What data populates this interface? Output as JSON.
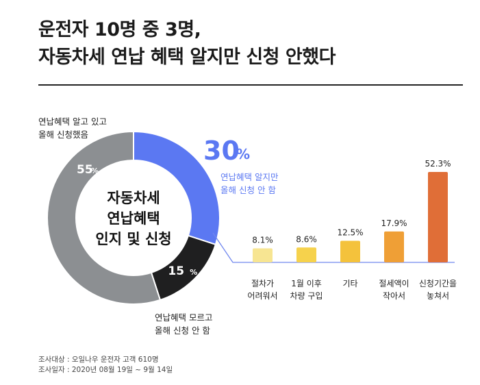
{
  "title": {
    "line1": "운전자 10명 중 3명,",
    "line2": "자동차세 연납 혜택 알지만 신청 안했다"
  },
  "colors": {
    "blue": "#5b78f2",
    "gray": "#8c8f92",
    "black": "#1f1f20",
    "line": "#6f86ee"
  },
  "chart_data": [
    {
      "type": "pie",
      "center_label": [
        "자동차세",
        "연납혜택",
        "인지 및 신청"
      ],
      "slices": [
        {
          "pct": 30,
          "display": "30",
          "unit": "%",
          "color": "#5b78f2",
          "label": [
            "연납혜택 알지만",
            "올해 신청 안 함"
          ]
        },
        {
          "pct": 15,
          "display": "15",
          "unit": "%",
          "color": "#1f1f20",
          "label": [
            "연납혜택 모르고",
            "올해 신청 안 함"
          ]
        },
        {
          "pct": 55,
          "display": "55",
          "unit": "%",
          "color": "#8c8f92",
          "label": [
            "연납혜택 알고 있고",
            "올해 신청했음"
          ]
        }
      ]
    },
    {
      "type": "bar",
      "categories": [
        [
          "절차가",
          "어려워서"
        ],
        [
          "1월 이후",
          "차량 구입"
        ],
        [
          "기타"
        ],
        [
          "절세액이",
          "작아서"
        ],
        [
          "신청기간을",
          "놓쳐서"
        ]
      ],
      "values": [
        8.1,
        8.6,
        12.5,
        17.9,
        52.3
      ],
      "value_labels": [
        "8.1%",
        "8.6%",
        "12.5%",
        "17.9%",
        "52.3%"
      ],
      "colors": [
        "#f7e592",
        "#f6d24c",
        "#f4c23c",
        "#ef9f36",
        "#e06e37"
      ]
    }
  ],
  "footer": {
    "line1": "조사대상 : 오일나우 운전자 고객 610명",
    "line2": "조사일자 : 2020년 08월 19일 ~ 9월 14일"
  }
}
